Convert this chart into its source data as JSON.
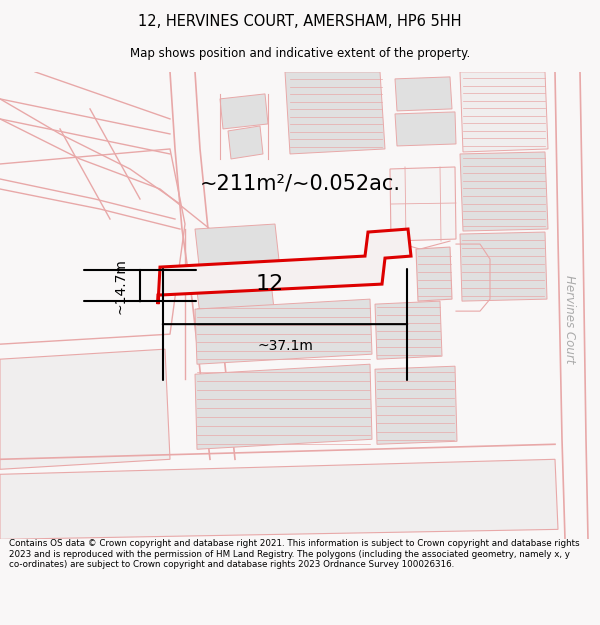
{
  "title": "12, HERVINES COURT, AMERSHAM, HP6 5HH",
  "subtitle": "Map shows position and indicative extent of the property.",
  "area_text": "~211m²/~0.052ac.",
  "width_label": "~37.1m",
  "height_label": "~14.7m",
  "number_label": "12",
  "street_label": "Hervines Court",
  "footer": "Contains OS data © Crown copyright and database right 2021. This information is subject to Crown copyright and database rights 2023 and is reproduced with the permission of HM Land Registry. The polygons (including the associated geometry, namely x, y co-ordinates) are subject to Crown copyright and database rights 2023 Ordnance Survey 100026316.",
  "bg_color": "#f9f7f7",
  "map_bg": "#ffffff",
  "lc": "#e8a8a8",
  "red_outline": "#dd0000",
  "gray_fill": "#d8d8d8",
  "gray2": "#e0e0e0",
  "gray3": "#c8c8c8"
}
